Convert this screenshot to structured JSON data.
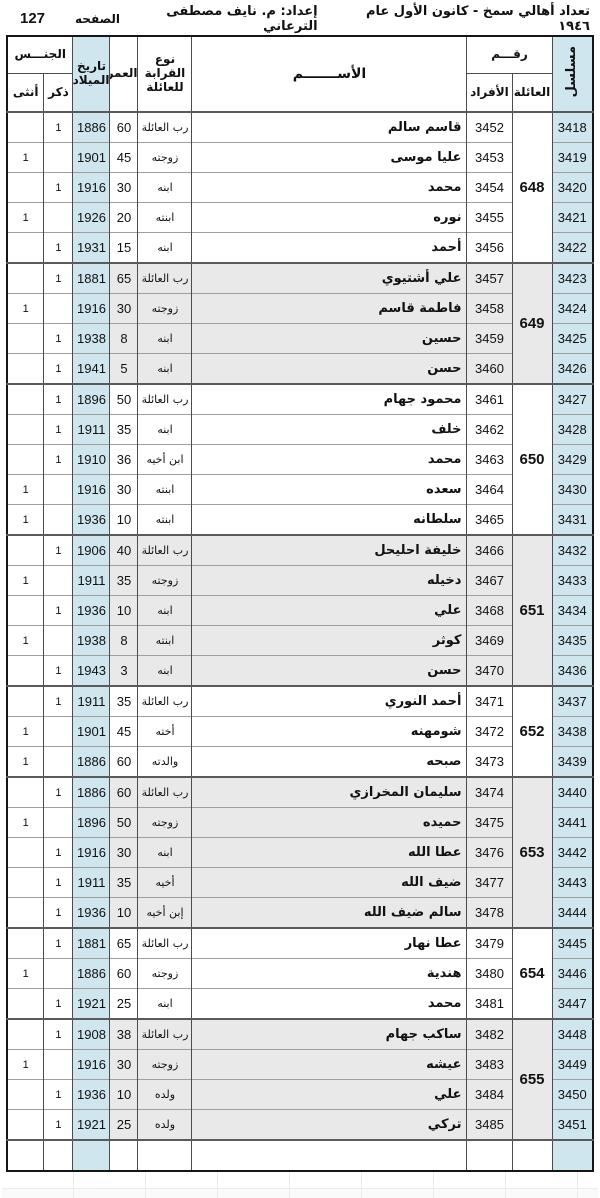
{
  "colors": {
    "accent_blue": "#cfe6ef",
    "row_gray": "#e9e9e9"
  },
  "header": {
    "title": "تعداد أهالي سمخ - كانون الأول عام ١٩٤٦",
    "prepared_by": "إعداد: م. نايف مصطفى الترعاني",
    "page_label": "الصفحه",
    "page_number": "127"
  },
  "table": {
    "headers": {
      "serial": "مسلسل",
      "number_group": "رقـــم",
      "family": "العائلة",
      "individual": "الأفراد",
      "name": "الأســـــــم",
      "relation": "نوع القرابة للعائلة",
      "age": "العمر",
      "birthdate": "تاريخ الميلاد",
      "gender_group": "الجنـــس",
      "male": "ذكر",
      "female": "أنثى"
    },
    "families": [
      {
        "family_no": "648",
        "shaded": false,
        "members": [
          {
            "serial": "3418",
            "individual": "3452",
            "name": "قاسم سالم",
            "relation": "رب العائلة",
            "age": "60",
            "birth_year": "1886",
            "male": "1",
            "female": ""
          },
          {
            "serial": "3419",
            "individual": "3453",
            "name": "عليا موسى",
            "relation": "زوجته",
            "age": "45",
            "birth_year": "1901",
            "male": "",
            "female": "1"
          },
          {
            "serial": "3420",
            "individual": "3454",
            "name": "محمد",
            "relation": "ابنه",
            "age": "30",
            "birth_year": "1916",
            "male": "1",
            "female": ""
          },
          {
            "serial": "3421",
            "individual": "3455",
            "name": "نوره",
            "relation": "ابنته",
            "age": "20",
            "birth_year": "1926",
            "male": "",
            "female": "1"
          },
          {
            "serial": "3422",
            "individual": "3456",
            "name": "أحمد",
            "relation": "ابنه",
            "age": "15",
            "birth_year": "1931",
            "male": "1",
            "female": ""
          }
        ]
      },
      {
        "family_no": "649",
        "shaded": true,
        "members": [
          {
            "serial": "3423",
            "individual": "3457",
            "name": "علي أشتيوي",
            "relation": "رب العائلة",
            "age": "65",
            "birth_year": "1881",
            "male": "1",
            "female": ""
          },
          {
            "serial": "3424",
            "individual": "3458",
            "name": "فاطمة قاسم",
            "relation": "زوجته",
            "age": "30",
            "birth_year": "1916",
            "male": "",
            "female": "1"
          },
          {
            "serial": "3425",
            "individual": "3459",
            "name": "حسين",
            "relation": "ابنه",
            "age": "8",
            "birth_year": "1938",
            "male": "1",
            "female": ""
          },
          {
            "serial": "3426",
            "individual": "3460",
            "name": "حسن",
            "relation": "ابنه",
            "age": "5",
            "birth_year": "1941",
            "male": "1",
            "female": ""
          }
        ]
      },
      {
        "family_no": "650",
        "shaded": false,
        "members": [
          {
            "serial": "3427",
            "individual": "3461",
            "name": "محمود جهام",
            "relation": "رب العائلة",
            "age": "50",
            "birth_year": "1896",
            "male": "1",
            "female": ""
          },
          {
            "serial": "3428",
            "individual": "3462",
            "name": "خلف",
            "relation": "ابنه",
            "age": "35",
            "birth_year": "1911",
            "male": "1",
            "female": ""
          },
          {
            "serial": "3429",
            "individual": "3463",
            "name": "محمد",
            "relation": "ابن أخيه",
            "age": "36",
            "birth_year": "1910",
            "male": "1",
            "female": ""
          },
          {
            "serial": "3430",
            "individual": "3464",
            "name": "سعده",
            "relation": "ابنته",
            "age": "30",
            "birth_year": "1916",
            "male": "",
            "female": "1"
          },
          {
            "serial": "3431",
            "individual": "3465",
            "name": "سلطانه",
            "relation": "ابنته",
            "age": "10",
            "birth_year": "1936",
            "male": "",
            "female": "1"
          }
        ]
      },
      {
        "family_no": "651",
        "shaded": true,
        "members": [
          {
            "serial": "3432",
            "individual": "3466",
            "name": "خليفة احليحل",
            "relation": "رب العائلة",
            "age": "40",
            "birth_year": "1906",
            "male": "1",
            "female": ""
          },
          {
            "serial": "3433",
            "individual": "3467",
            "name": "دخيله",
            "relation": "زوجته",
            "age": "35",
            "birth_year": "1911",
            "male": "",
            "female": "1"
          },
          {
            "serial": "3434",
            "individual": "3468",
            "name": "علي",
            "relation": "ابنه",
            "age": "10",
            "birth_year": "1936",
            "male": "1",
            "female": ""
          },
          {
            "serial": "3435",
            "individual": "3469",
            "name": "كوثر",
            "relation": "ابنته",
            "age": "8",
            "birth_year": "1938",
            "male": "",
            "female": "1"
          },
          {
            "serial": "3436",
            "individual": "3470",
            "name": "حسن",
            "relation": "ابنه",
            "age": "3",
            "birth_year": "1943",
            "male": "1",
            "female": ""
          }
        ]
      },
      {
        "family_no": "652",
        "shaded": false,
        "members": [
          {
            "serial": "3437",
            "individual": "3471",
            "name": "أحمد النوري",
            "relation": "رب العائلة",
            "age": "35",
            "birth_year": "1911",
            "male": "1",
            "female": ""
          },
          {
            "serial": "3438",
            "individual": "3472",
            "name": "شومهنه",
            "relation": "أخته",
            "age": "45",
            "birth_year": "1901",
            "male": "",
            "female": "1"
          },
          {
            "serial": "3439",
            "individual": "3473",
            "name": "صبحه",
            "relation": "والدته",
            "age": "60",
            "birth_year": "1886",
            "male": "",
            "female": "1"
          }
        ]
      },
      {
        "family_no": "653",
        "shaded": true,
        "members": [
          {
            "serial": "3440",
            "individual": "3474",
            "name": "سليمان المخرازي",
            "relation": "رب العائلة",
            "age": "60",
            "birth_year": "1886",
            "male": "1",
            "female": ""
          },
          {
            "serial": "3441",
            "individual": "3475",
            "name": "حميده",
            "relation": "زوجته",
            "age": "50",
            "birth_year": "1896",
            "male": "",
            "female": "1"
          },
          {
            "serial": "3442",
            "individual": "3476",
            "name": "عطا الله",
            "relation": "ابنه",
            "age": "30",
            "birth_year": "1916",
            "male": "1",
            "female": ""
          },
          {
            "serial": "3443",
            "individual": "3477",
            "name": "ضيف الله",
            "relation": "أخيه",
            "age": "35",
            "birth_year": "1911",
            "male": "1",
            "female": ""
          },
          {
            "serial": "3444",
            "individual": "3478",
            "name": "سالم ضيف الله",
            "relation": "إبن أخيه",
            "age": "10",
            "birth_year": "1936",
            "male": "1",
            "female": ""
          }
        ]
      },
      {
        "family_no": "654",
        "shaded": false,
        "members": [
          {
            "serial": "3445",
            "individual": "3479",
            "name": "عطا نهار",
            "relation": "رب العائلة",
            "age": "65",
            "birth_year": "1881",
            "male": "1",
            "female": ""
          },
          {
            "serial": "3446",
            "individual": "3480",
            "name": "هندية",
            "relation": "زوجته",
            "age": "60",
            "birth_year": "1886",
            "male": "",
            "female": "1"
          },
          {
            "serial": "3447",
            "individual": "3481",
            "name": "محمد",
            "relation": "ابنه",
            "age": "25",
            "birth_year": "1921",
            "male": "1",
            "female": ""
          }
        ]
      },
      {
        "family_no": "655",
        "shaded": true,
        "members": [
          {
            "serial": "3448",
            "individual": "3482",
            "name": "ساكب جهام",
            "relation": "رب العائلة",
            "age": "38",
            "birth_year": "1908",
            "male": "1",
            "female": ""
          },
          {
            "serial": "3449",
            "individual": "3483",
            "name": "عيشه",
            "relation": "زوجته",
            "age": "30",
            "birth_year": "1916",
            "male": "",
            "female": "1"
          },
          {
            "serial": "3450",
            "individual": "3484",
            "name": "علي",
            "relation": "ولده",
            "age": "10",
            "birth_year": "1936",
            "male": "1",
            "female": ""
          },
          {
            "serial": "3451",
            "individual": "3485",
            "name": "تركي",
            "relation": "ولده",
            "age": "25",
            "birth_year": "1921",
            "male": "1",
            "female": ""
          }
        ]
      }
    ]
  }
}
